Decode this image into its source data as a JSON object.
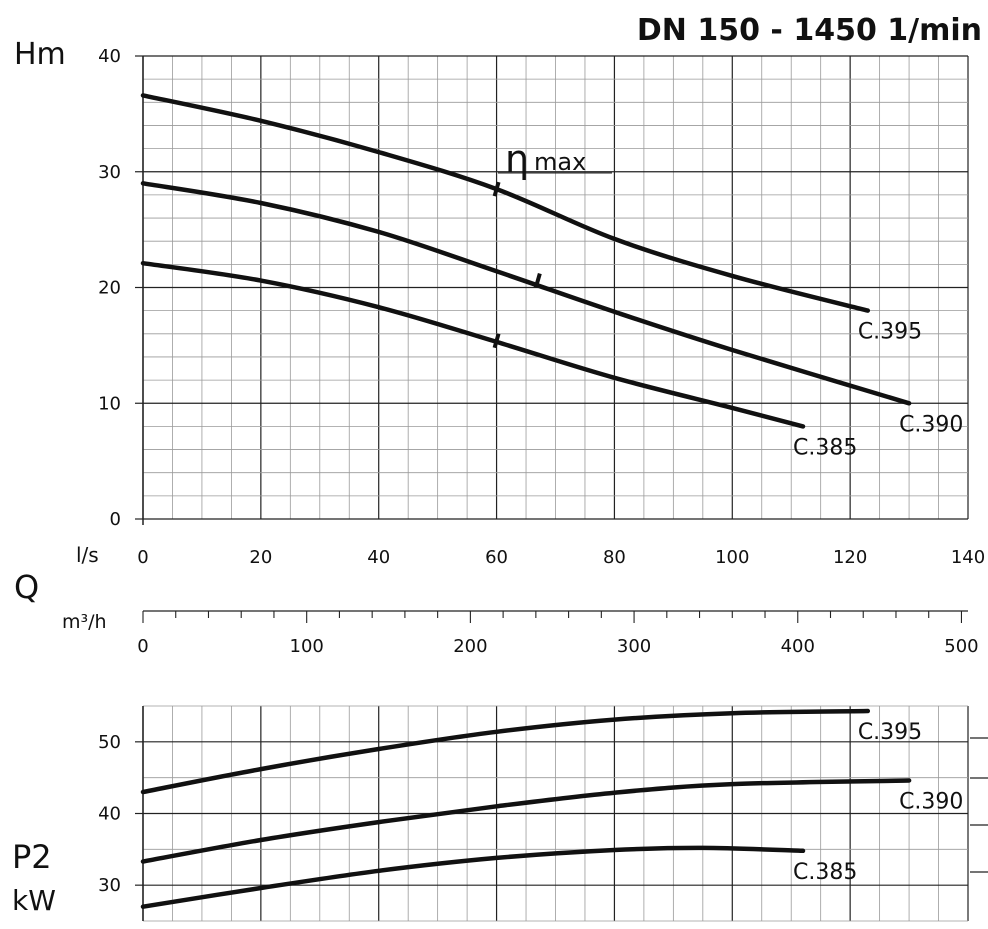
{
  "title": "DN 150 - 1450 1/min",
  "colors": {
    "curve": "#111111",
    "grid_major": "#222222",
    "grid_minor": "#9a9a9a",
    "background": "#ffffff"
  },
  "axis_labels": {
    "head": "Hm",
    "flow_ls": "l/s",
    "flow": "Q",
    "flow_m3h": "m³/h",
    "power": "P2",
    "power_unit": "kW",
    "eta_symbol": "η",
    "eta_text": "max"
  },
  "chart_data": [
    {
      "type": "line",
      "name": "head",
      "xlabel": "l/s",
      "ylabel": "Hm",
      "xlim": [
        0,
        140
      ],
      "ylim": [
        0,
        40
      ],
      "x_ticks": [
        0,
        20,
        40,
        60,
        80,
        100,
        120,
        140
      ],
      "y_ticks": [
        0,
        10,
        20,
        30,
        40
      ],
      "grid": true,
      "series": [
        {
          "name": "C.395",
          "x": [
            0,
            20,
            40,
            60,
            80,
            100,
            123
          ],
          "y": [
            36.6,
            34.4,
            31.7,
            28.5,
            24.2,
            21.0,
            18.0
          ]
        },
        {
          "name": "C.390",
          "x": [
            0,
            20,
            40,
            60,
            80,
            100,
            130
          ],
          "y": [
            29.0,
            27.3,
            24.8,
            21.4,
            17.9,
            14.6,
            10.0
          ]
        },
        {
          "name": "C.385",
          "x": [
            0,
            20,
            40,
            60,
            80,
            100,
            112
          ],
          "y": [
            22.1,
            20.6,
            18.3,
            15.3,
            12.2,
            9.6,
            8.0
          ]
        }
      ],
      "eta_max_marks": [
        {
          "x": 60,
          "y": 28.5
        },
        {
          "x": 67,
          "y": 20.6
        },
        {
          "x": 60,
          "y": 15.4
        }
      ]
    },
    {
      "type": "axis",
      "name": "flow_m3h",
      "xlabel": "m³/h",
      "xlim": [
        0,
        504
      ],
      "x_ticks": [
        0,
        100,
        200,
        300,
        400,
        500
      ]
    },
    {
      "type": "line",
      "name": "power",
      "xlabel": "l/s",
      "ylabel": "P2 kW",
      "xlim": [
        0,
        140
      ],
      "ylim": [
        25,
        55
      ],
      "y_ticks": [
        30,
        40,
        50
      ],
      "grid": true,
      "series": [
        {
          "name": "C.395",
          "x": [
            0,
            20,
            40,
            60,
            80,
            100,
            123
          ],
          "y": [
            43.0,
            46.2,
            49.0,
            51.4,
            53.1,
            54.0,
            54.3
          ]
        },
        {
          "name": "C.390",
          "x": [
            0,
            20,
            40,
            60,
            80,
            100,
            130
          ],
          "y": [
            33.3,
            36.3,
            38.8,
            41.0,
            42.9,
            44.1,
            44.6
          ]
        },
        {
          "name": "C.385",
          "x": [
            0,
            20,
            40,
            60,
            80,
            95,
            112
          ],
          "y": [
            27.0,
            29.6,
            32.0,
            33.8,
            34.9,
            35.2,
            34.8
          ]
        }
      ]
    }
  ]
}
